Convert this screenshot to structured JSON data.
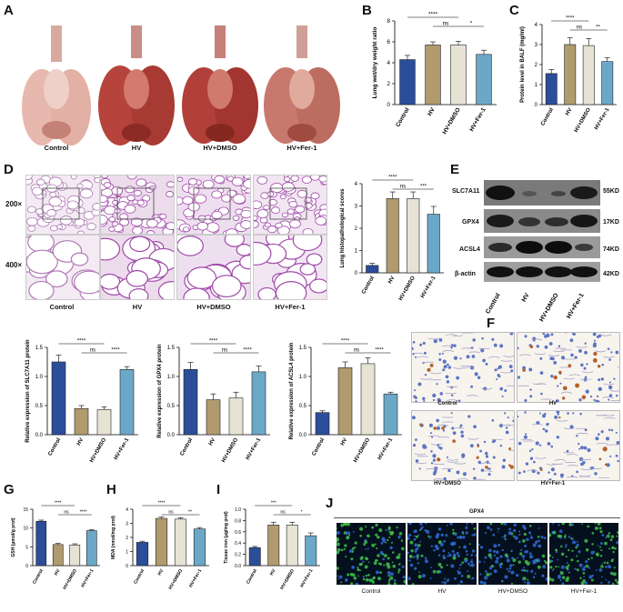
{
  "panels": {
    "A": "A",
    "B": "B",
    "C": "C",
    "D": "D",
    "E": "E",
    "F": "F",
    "G": "G",
    "H": "H",
    "I": "I",
    "J": "J"
  },
  "groups": [
    "Control",
    "HV",
    "HV+DMSO",
    "HV+Fer-1"
  ],
  "colors": {
    "control": "#2b4d9a",
    "hv": "#b09a6e",
    "hvdmso": "#e6e2d4",
    "fer1": "#6ba8c8"
  },
  "panelA": {
    "captions": [
      "Control",
      "HV",
      "HV+DMSO",
      "HV+Fer-1"
    ]
  },
  "panelD": {
    "row_labels": [
      "200×",
      "400×"
    ],
    "captions": [
      "Control",
      "HV",
      "HV+DMSO",
      "HV+Fer-1"
    ]
  },
  "panelE": {
    "proteins": [
      "SLC7A11",
      "GPX4",
      "ACSL4",
      "β-actin"
    ],
    "sizes": [
      "55KD",
      "17KD",
      "74KD",
      "42KD"
    ],
    "lanes": [
      "Control",
      "HV",
      "HV+DMSO",
      "HV+Fer-1"
    ]
  },
  "panelF": {
    "captions": [
      "Control",
      "HV",
      "HV+DMSO",
      "HV+Fer-1"
    ]
  },
  "panelJ": {
    "title": "GPX4",
    "captions": [
      "Control",
      "HV",
      "HV+DMSO",
      "HV+Fer-1"
    ]
  },
  "chart_data": [
    {
      "id": "B",
      "type": "bar",
      "categories": [
        "Control",
        "HV",
        "HV+DMSO",
        "HV+Fer-1"
      ],
      "values": [
        4.3,
        5.7,
        5.7,
        4.8
      ],
      "errors": [
        0.4,
        0.3,
        0.35,
        0.4
      ],
      "ylabel": "Lung wet/dry weight ratio",
      "ylim": [
        0,
        8
      ],
      "yticks": [
        0,
        2,
        4,
        6,
        8
      ],
      "sig": [
        {
          "from": 0,
          "to": 2,
          "label": "****",
          "level": 0
        },
        {
          "from": 1,
          "to": 2,
          "label": "ns",
          "level": 1
        },
        {
          "from": 2,
          "to": 3,
          "label": "*"
        }
      ]
    },
    {
      "id": "C",
      "type": "bar",
      "categories": [
        "Control",
        "HV",
        "HV+DMSO",
        "HV+Fer-1"
      ],
      "values": [
        1.55,
        3.0,
        2.95,
        2.15
      ],
      "errors": [
        0.2,
        0.35,
        0.35,
        0.2
      ],
      "ylabel": "Protein level in BALF (mg/ml)",
      "ylim": [
        0,
        4
      ],
      "yticks": [
        0,
        1,
        2,
        3,
        4
      ],
      "sig": [
        {
          "from": 0,
          "to": 2,
          "label": "****",
          "level": 0
        },
        {
          "from": 1,
          "to": 2,
          "label": "ns",
          "level": 1
        },
        {
          "from": 2,
          "to": 3,
          "label": "**"
        }
      ]
    },
    {
      "id": "D",
      "type": "bar",
      "categories": [
        "Control",
        "HV",
        "HV+DMSO",
        "HV+Fer-1"
      ],
      "values": [
        0.33,
        3.33,
        3.33,
        2.63
      ],
      "errors": [
        0.1,
        0.3,
        0.3,
        0.35
      ],
      "ylabel": "Lung histopathological scores",
      "ylim": [
        0,
        4
      ],
      "yticks": [
        0,
        1,
        2,
        3,
        4
      ],
      "sig": [
        {
          "from": 0,
          "to": 2,
          "label": "****",
          "level": 0
        },
        {
          "from": 1,
          "to": 2,
          "label": "ns",
          "level": 1
        },
        {
          "from": 2,
          "to": 3,
          "label": "***"
        }
      ]
    },
    {
      "id": "E1",
      "type": "bar",
      "categories": [
        "Control",
        "HV",
        "HV+DMSO",
        "HV+Fer-1"
      ],
      "values": [
        1.25,
        0.45,
        0.43,
        1.12
      ],
      "errors": [
        0.12,
        0.05,
        0.05,
        0.05
      ],
      "ylabel": "Relative expression of SLC7A11 protein",
      "ylim": [
        0,
        1.5
      ],
      "yticks": [
        0.0,
        0.5,
        1.0,
        1.5
      ],
      "sig": [
        {
          "from": 0,
          "to": 2,
          "label": "****",
          "level": 0
        },
        {
          "from": 1,
          "to": 2,
          "label": "ns",
          "level": 1
        },
        {
          "from": 2,
          "to": 3,
          "label": "****"
        }
      ]
    },
    {
      "id": "E2",
      "type": "bar",
      "categories": [
        "Control",
        "HV",
        "HV+DMSO",
        "HV+Fer-1"
      ],
      "values": [
        1.12,
        0.6,
        0.63,
        1.08
      ],
      "errors": [
        0.12,
        0.1,
        0.1,
        0.1
      ],
      "ylabel": "Relative expression of GPX4 protein",
      "ylim": [
        0,
        1.5
      ],
      "yticks": [
        0.0,
        0.5,
        1.0,
        1.5
      ],
      "sig": [
        {
          "from": 0,
          "to": 2,
          "label": "****",
          "level": 0
        },
        {
          "from": 1,
          "to": 2,
          "label": "ns",
          "level": 1
        },
        {
          "from": 2,
          "to": 3,
          "label": "****"
        }
      ]
    },
    {
      "id": "E3",
      "type": "bar",
      "categories": [
        "Control",
        "HV",
        "HV+DMSO",
        "HV+Fer-1"
      ],
      "values": [
        0.38,
        1.15,
        1.22,
        0.7
      ],
      "errors": [
        0.03,
        0.1,
        0.1,
        0.03
      ],
      "ylabel": "Relative expression of ACSL4 protein",
      "ylim": [
        0,
        1.5
      ],
      "yticks": [
        0.0,
        0.5,
        1.0,
        1.5
      ],
      "sig": [
        {
          "from": 0,
          "to": 2,
          "label": "****",
          "level": 0
        },
        {
          "from": 1,
          "to": 2,
          "label": "ns",
          "level": 1
        },
        {
          "from": 2,
          "to": 3,
          "label": "****"
        }
      ]
    },
    {
      "id": "G",
      "type": "bar",
      "categories": [
        "Control",
        "HV",
        "HV+DMSO",
        "HV+Fer-1"
      ],
      "values": [
        11.8,
        5.6,
        5.5,
        9.3
      ],
      "errors": [
        0.3,
        0.3,
        0.3,
        0.3
      ],
      "ylabel": "GSH (μmol/g prot)",
      "ylim": [
        0,
        15
      ],
      "yticks": [
        0,
        5,
        10,
        15
      ],
      "sig": [
        {
          "from": 0,
          "to": 2,
          "label": "****",
          "level": 0
        },
        {
          "from": 1,
          "to": 2,
          "label": "ns",
          "level": 1
        },
        {
          "from": 2,
          "to": 3,
          "label": "****"
        }
      ]
    },
    {
      "id": "H",
      "type": "bar",
      "categories": [
        "Control",
        "HV",
        "HV+DMSO",
        "HV+Fer-1"
      ],
      "values": [
        1.65,
        3.35,
        3.3,
        2.6
      ],
      "errors": [
        0.08,
        0.1,
        0.1,
        0.1
      ],
      "ylabel": "MDA (nmol/mg prot)",
      "ylim": [
        0,
        4
      ],
      "yticks": [
        0,
        1,
        2,
        3,
        4
      ],
      "sig": [
        {
          "from": 0,
          "to": 2,
          "label": "****",
          "level": 0
        },
        {
          "from": 1,
          "to": 2,
          "label": "ns",
          "level": 1
        },
        {
          "from": 2,
          "to": 3,
          "label": "**"
        }
      ]
    },
    {
      "id": "I",
      "type": "bar",
      "categories": [
        "Control",
        "HV",
        "HV+DMSO",
        "HV+Fer-1"
      ],
      "values": [
        0.32,
        0.72,
        0.72,
        0.53
      ],
      "errors": [
        0.02,
        0.05,
        0.05,
        0.05
      ],
      "ylabel": "Tissue iron (μg/mg prot)",
      "ylim": [
        0,
        1.0
      ],
      "yticks": [
        0.0,
        0.2,
        0.4,
        0.6,
        0.8,
        1.0
      ],
      "sig": [
        {
          "from": 0,
          "to": 2,
          "label": "***",
          "level": 0
        },
        {
          "from": 1,
          "to": 2,
          "label": "ns",
          "level": 1
        },
        {
          "from": 2,
          "to": 3,
          "label": "*"
        }
      ]
    }
  ]
}
